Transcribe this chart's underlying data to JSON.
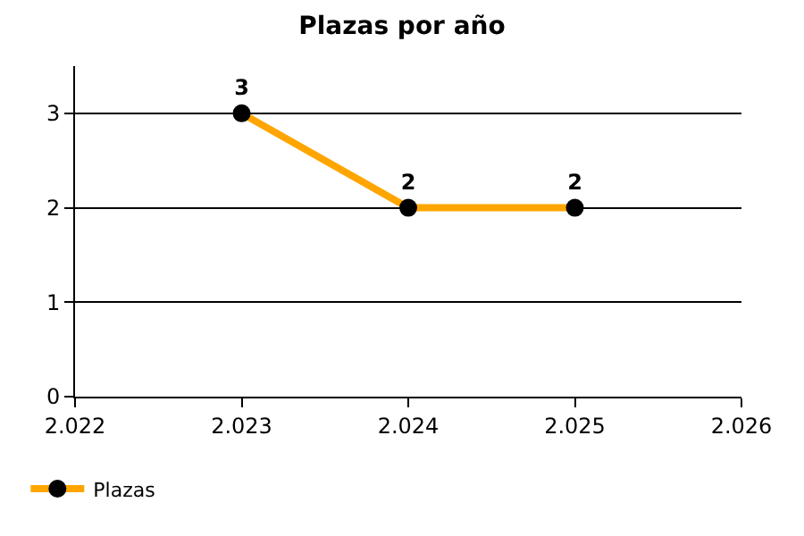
{
  "chart_data": {
    "type": "line",
    "title": "Plazas por año",
    "x": [
      2023,
      2024,
      2025
    ],
    "series": [
      {
        "name": "Plazas",
        "color": "#ffa500",
        "values": [
          3,
          2,
          2
        ]
      }
    ],
    "xlim": [
      2022,
      2026
    ],
    "xticks": [
      {
        "value": 2022,
        "label": "2.022"
      },
      {
        "value": 2023,
        "label": "2.023"
      },
      {
        "value": 2024,
        "label": "2.024"
      },
      {
        "value": 2025,
        "label": "2.025"
      },
      {
        "value": 2026,
        "label": "2.026"
      }
    ],
    "ylim": [
      0,
      3.5
    ],
    "yticks": [
      0,
      1,
      2,
      3
    ],
    "grid": "y",
    "legend": "bottom left",
    "marker": "circle",
    "line_style": "solid",
    "data_labels": true
  }
}
